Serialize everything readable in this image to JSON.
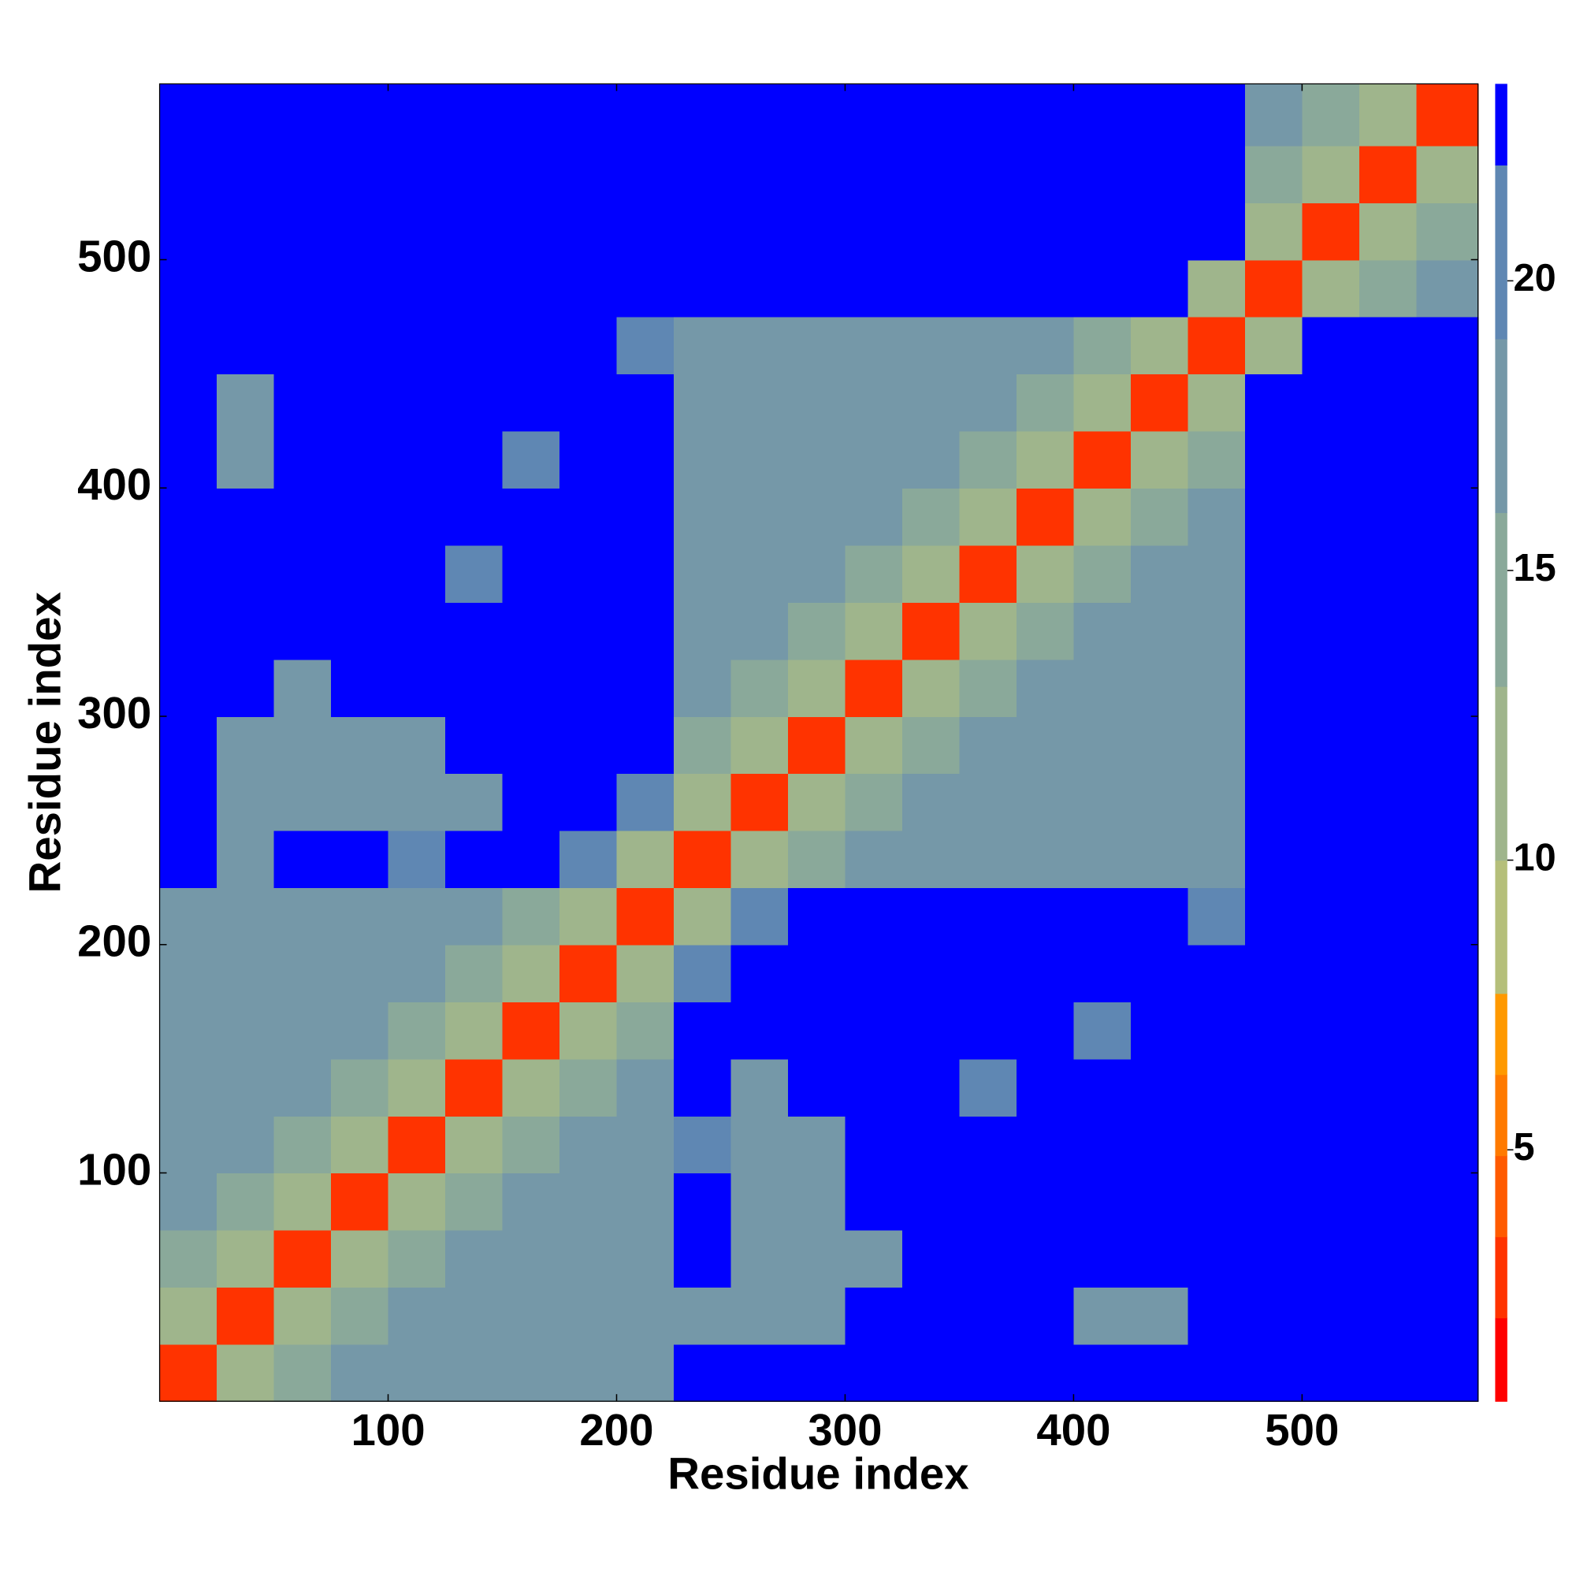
{
  "chart_data": {
    "type": "heatmap",
    "x_label": "Residue index",
    "y_label": "Residue index",
    "xlim": [
      0,
      577
    ],
    "ylim": [
      0,
      577
    ],
    "xticks": [
      100,
      200,
      300,
      400,
      500
    ],
    "yticks": [
      100,
      200,
      300,
      400,
      500
    ],
    "x_edges": [
      0,
      25,
      50,
      75,
      100,
      125,
      150,
      175,
      200,
      225,
      250,
      275,
      300,
      325,
      350,
      375,
      400,
      425,
      450,
      475,
      500,
      525,
      550,
      577
    ],
    "y_edges": [
      0,
      25,
      50,
      75,
      100,
      125,
      150,
      175,
      200,
      225,
      250,
      275,
      300,
      325,
      350,
      375,
      400,
      425,
      450,
      475,
      500,
      525,
      550,
      577
    ],
    "colorbar_lim": [
      0.66,
      23.4
    ],
    "colorbar_ticks": [
      5,
      10,
      15,
      20
    ],
    "colorscale": [
      {
        "from": 0.66,
        "to": 2.1,
        "color": "#ff0000"
      },
      {
        "from": 2.1,
        "to": 3.5,
        "color": "#ff3300"
      },
      {
        "from": 3.5,
        "to": 4.9,
        "color": "#ff5a00"
      },
      {
        "from": 4.9,
        "to": 6.3,
        "color": "#ff7a00"
      },
      {
        "from": 6.3,
        "to": 7.7,
        "color": "#ff9900"
      },
      {
        "from": 7.7,
        "to": 10,
        "color": "#b5bf7a"
      },
      {
        "from": 10,
        "to": 13,
        "color": "#9fb58c"
      },
      {
        "from": 13,
        "to": 16,
        "color": "#8aa99a"
      },
      {
        "from": 16,
        "to": 19,
        "color": "#7598a8"
      },
      {
        "from": 19,
        "to": 22,
        "color": "#5f87b3"
      },
      {
        "from": 22,
        "to": 23.4,
        "color": "#0000ff"
      }
    ],
    "z": [
      [
        3,
        11,
        15,
        18,
        18,
        18,
        18,
        18,
        18,
        22,
        22,
        22,
        22,
        22,
        22,
        22,
        22,
        22,
        22,
        22,
        22,
        22,
        22
      ],
      [
        11,
        3,
        11,
        15,
        18,
        18,
        18,
        18,
        18,
        17,
        16,
        17,
        22,
        22,
        22,
        22,
        18,
        16,
        22,
        22,
        22,
        22,
        22
      ],
      [
        15,
        11,
        3,
        11,
        15,
        18,
        18,
        18,
        18,
        22,
        17,
        16,
        18,
        22,
        22,
        22,
        22,
        22,
        22,
        22,
        22,
        22,
        22
      ],
      [
        18,
        15,
        11,
        3,
        11,
        15,
        18,
        18,
        18,
        22,
        18,
        17,
        22,
        22,
        22,
        22,
        22,
        22,
        22,
        22,
        22,
        22,
        22
      ],
      [
        18,
        18,
        15,
        11,
        3,
        11,
        15,
        18,
        18,
        19,
        16,
        17,
        22,
        22,
        22,
        22,
        22,
        22,
        22,
        22,
        22,
        22,
        22
      ],
      [
        18,
        18,
        18,
        15,
        11,
        3,
        11,
        15,
        18,
        22,
        18,
        22,
        22,
        22,
        21,
        22,
        22,
        22,
        22,
        22,
        22,
        22,
        22
      ],
      [
        18,
        18,
        18,
        18,
        15,
        11,
        3,
        11,
        15,
        22,
        22,
        22,
        22,
        22,
        22,
        22,
        21,
        22,
        22,
        22,
        22,
        22,
        22
      ],
      [
        18,
        18,
        18,
        18,
        18,
        15,
        11,
        3,
        11,
        20,
        22,
        22,
        22,
        22,
        22,
        22,
        22,
        22,
        22,
        22,
        22,
        22,
        22
      ],
      [
        18,
        18,
        18,
        18,
        18,
        18,
        15,
        11,
        3,
        11,
        20,
        22,
        22,
        22,
        22,
        22,
        22,
        22,
        20,
        22,
        22,
        22,
        22
      ],
      [
        22,
        17,
        22,
        22,
        19,
        22,
        22,
        20,
        11,
        3,
        11,
        15,
        18,
        18,
        18,
        18,
        18,
        18,
        18,
        22,
        22,
        22,
        22
      ],
      [
        22,
        16,
        17,
        18,
        16,
        18,
        22,
        22,
        20,
        11,
        3,
        11,
        15,
        18,
        18,
        18,
        18,
        18,
        18,
        22,
        22,
        22,
        22
      ],
      [
        22,
        17,
        16,
        17,
        17,
        22,
        22,
        22,
        22,
        15,
        11,
        3,
        11,
        15,
        18,
        18,
        18,
        18,
        18,
        22,
        22,
        22,
        22
      ],
      [
        22,
        22,
        18,
        22,
        22,
        22,
        22,
        22,
        22,
        18,
        15,
        11,
        3,
        11,
        15,
        18,
        18,
        18,
        18,
        22,
        22,
        22,
        22
      ],
      [
        22,
        22,
        22,
        22,
        22,
        22,
        22,
        22,
        22,
        18,
        18,
        15,
        11,
        3,
        11,
        15,
        18,
        18,
        18,
        22,
        22,
        22,
        22
      ],
      [
        22,
        22,
        22,
        22,
        22,
        21,
        22,
        22,
        22,
        18,
        18,
        18,
        15,
        11,
        3,
        11,
        15,
        18,
        18,
        22,
        22,
        22,
        22
      ],
      [
        22,
        22,
        22,
        22,
        22,
        22,
        22,
        22,
        22,
        18,
        18,
        18,
        18,
        15,
        11,
        3,
        11,
        15,
        18,
        22,
        22,
        22,
        22
      ],
      [
        22,
        18,
        22,
        22,
        22,
        22,
        21,
        22,
        22,
        18,
        18,
        18,
        18,
        18,
        15,
        11,
        3,
        11,
        15,
        22,
        22,
        22,
        22
      ],
      [
        22,
        16,
        22,
        22,
        22,
        22,
        22,
        22,
        22,
        18,
        18,
        18,
        18,
        18,
        18,
        15,
        11,
        3,
        11,
        22,
        22,
        22,
        22
      ],
      [
        22,
        22,
        22,
        22,
        22,
        22,
        22,
        22,
        20,
        18,
        18,
        18,
        18,
        18,
        18,
        18,
        15,
        11,
        3,
        11,
        22,
        22,
        22
      ],
      [
        22,
        22,
        22,
        22,
        22,
        22,
        22,
        22,
        22,
        22,
        22,
        22,
        22,
        22,
        22,
        22,
        22,
        22,
        11,
        3,
        11,
        15,
        18
      ],
      [
        22,
        22,
        22,
        22,
        22,
        22,
        22,
        22,
        22,
        22,
        22,
        22,
        22,
        22,
        22,
        22,
        22,
        22,
        22,
        11,
        3,
        11,
        15
      ],
      [
        22,
        22,
        22,
        22,
        22,
        22,
        22,
        22,
        22,
        22,
        22,
        22,
        22,
        22,
        22,
        22,
        22,
        22,
        22,
        15,
        11,
        3,
        11
      ],
      [
        22,
        22,
        22,
        22,
        22,
        22,
        22,
        22,
        22,
        22,
        22,
        22,
        22,
        22,
        22,
        22,
        22,
        22,
        22,
        18,
        15,
        11,
        3
      ]
    ]
  }
}
